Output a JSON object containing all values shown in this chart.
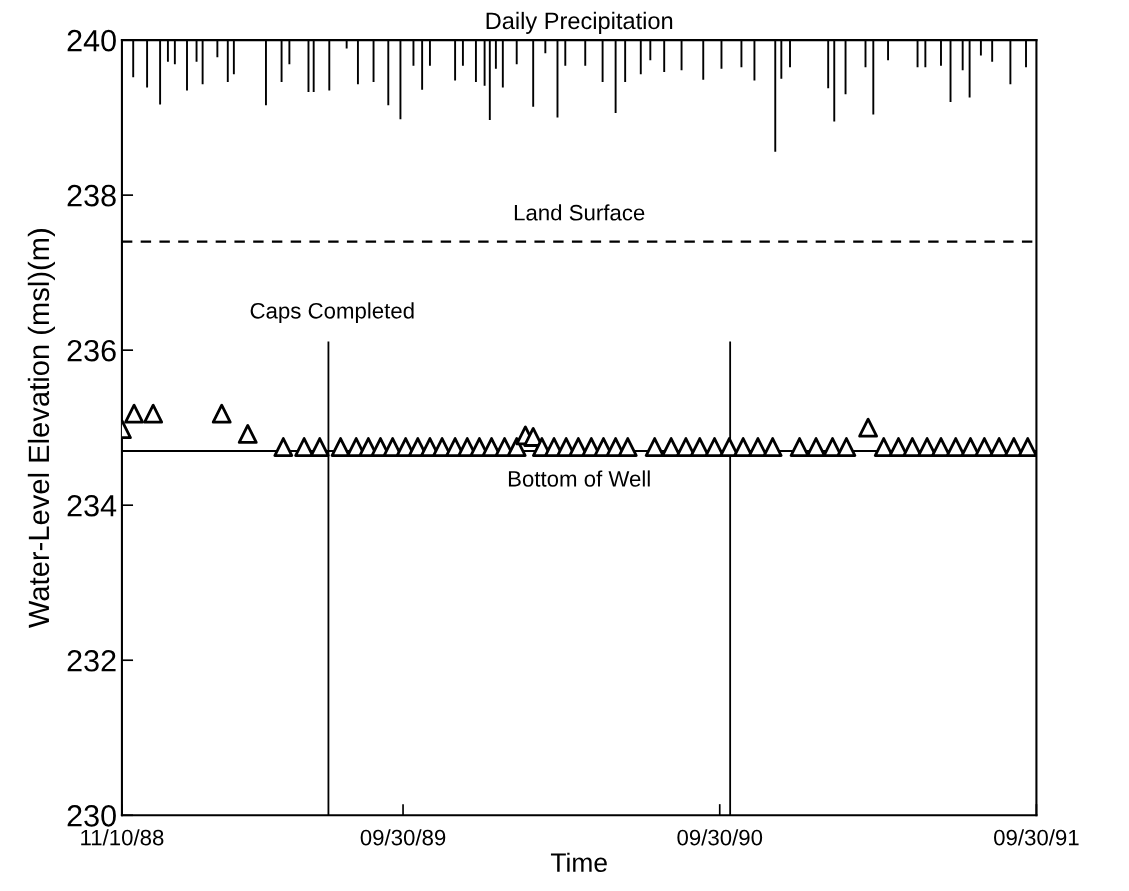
{
  "chart_data": {
    "type": "scatter",
    "title": "Daily Precipitation",
    "xlabel": "Time",
    "ylabel": "Water-Level Elevation (msl)(m)",
    "xlim": [
      "1988-11-10",
      "1991-09-30"
    ],
    "xticks": [
      {
        "value": "1988-11-10",
        "label": "11/10/88"
      },
      {
        "value": "1989-09-30",
        "label": "09/30/89"
      },
      {
        "value": "1990-09-30",
        "label": "09/30/90"
      },
      {
        "value": "1991-09-30",
        "label": "09/30/91"
      }
    ],
    "ylim": [
      230,
      240
    ],
    "yticks": [
      230,
      232,
      234,
      236,
      238,
      240
    ],
    "marker": "triangle",
    "ref_lines": [
      {
        "axis": "y",
        "value": 237.4,
        "label": "Land Surface",
        "line_style": "dashed",
        "color": "#000000"
      },
      {
        "axis": "y",
        "value": 234.7,
        "label": "Bottom of Well",
        "line_style": "solid",
        "color": "#000000"
      }
    ],
    "annotations": [
      "Caps Completed"
    ],
    "series": [
      {
        "type": "bar",
        "color": "#000000",
        "x": [
          "1988-11-23",
          "1988-12-09",
          "1988-12-24",
          "1989-01-02",
          "1989-01-10",
          "1989-01-24",
          "1989-02-04",
          "1989-02-11",
          "1989-02-28",
          "1989-03-12",
          "1989-03-19",
          "1989-04-25",
          "1989-05-13",
          "1989-05-22",
          "1989-06-13",
          "1989-06-19",
          "1989-07-07",
          "1989-07-27",
          "1989-08-09",
          "1989-08-27",
          "1989-09-13",
          "1989-09-27",
          "1989-10-12",
          "1989-10-22",
          "1989-10-31",
          "1989-11-29",
          "1989-12-08",
          "1989-12-23",
          "1990-01-02",
          "1990-01-08",
          "1990-01-15",
          "1990-01-23",
          "1990-02-08",
          "1990-02-27",
          "1990-03-13",
          "1990-03-27",
          "1990-04-05",
          "1990-04-28",
          "1990-05-18",
          "1990-06-02",
          "1990-06-13",
          "1990-07-01",
          "1990-07-12",
          "1990-07-28",
          "1990-08-17",
          "1990-09-11",
          "1990-10-02",
          "1990-10-25",
          "1990-11-09",
          "1990-12-03",
          "1990-12-10",
          "1990-12-20",
          "1991-02-02",
          "1991-02-09",
          "1991-02-22",
          "1991-03-17",
          "1991-03-26",
          "1991-04-12",
          "1991-05-16",
          "1991-05-25",
          "1991-06-12",
          "1991-06-23",
          "1991-07-07",
          "1991-07-15",
          "1991-07-28",
          "1991-08-10",
          "1991-08-31",
          "1991-09-18"
        ],
        "base": [
          240,
          240,
          240,
          240,
          240,
          240,
          240,
          240,
          240,
          240,
          240,
          240,
          240,
          240,
          240,
          240,
          240,
          240,
          240,
          240,
          240,
          240,
          240,
          240,
          240,
          240,
          240,
          240,
          240,
          240,
          240,
          240,
          240,
          240,
          240,
          240,
          240,
          240,
          240,
          240,
          240,
          240,
          240,
          240,
          240,
          240,
          240,
          240,
          240,
          240,
          240,
          240,
          240,
          240,
          240,
          240,
          240,
          240,
          240,
          240,
          240,
          240,
          240,
          240,
          240,
          240,
          240,
          240
        ],
        "values": [
          -0.48,
          -0.61,
          -0.83,
          -0.28,
          -0.31,
          -0.65,
          -0.28,
          -0.57,
          -0.22,
          -0.54,
          -0.44,
          -0.84,
          -0.54,
          -0.31,
          -0.67,
          -0.67,
          -0.65,
          -0.11,
          -0.57,
          -0.54,
          -0.84,
          -1.02,
          -0.33,
          -0.64,
          -0.33,
          -0.52,
          -0.33,
          -0.54,
          -0.59,
          -1.03,
          -0.37,
          -0.61,
          -0.31,
          -0.86,
          -0.17,
          -1.0,
          -0.33,
          -0.33,
          -0.54,
          -0.94,
          -0.54,
          -0.44,
          -0.26,
          -0.41,
          -0.39,
          -0.51,
          -0.37,
          -0.35,
          -0.52,
          -1.44,
          -0.5,
          -0.35,
          -0.62,
          -1.05,
          -0.7,
          -0.35,
          -0.96,
          -0.26,
          -0.35,
          -0.35,
          -0.33,
          -0.8,
          -0.39,
          -0.74,
          -0.2,
          -0.28,
          -0.57,
          -0.35
        ]
      },
      {
        "type": "line",
        "color": "#000000",
        "marker": "none",
        "x": [
          "1989-07-06",
          "1989-07-06"
        ],
        "values": [
          230,
          236.1
        ]
      },
      {
        "type": "line",
        "color": "#000000",
        "marker": "none",
        "x": [
          "1990-10-12",
          "1990-10-12"
        ],
        "values": [
          230,
          236.1
        ]
      },
      {
        "color": "#000000",
        "x": [
          "1988-11-10",
          "1988-11-24",
          "1988-12-16",
          "1989-03-05",
          "1989-04-04",
          "1989-05-15",
          "1989-06-08",
          "1989-06-26",
          "1989-07-20",
          "1989-08-07",
          "1989-08-21",
          "1989-09-04",
          "1989-09-18",
          "1989-10-03",
          "1989-10-17",
          "1989-10-31",
          "1989-11-14",
          "1989-11-29",
          "1989-12-13",
          "1989-12-27",
          "1990-01-10",
          "1990-01-25",
          "1990-02-08",
          "1990-02-18",
          "1990-02-27",
          "1990-03-09",
          "1990-03-23",
          "1990-04-06",
          "1990-04-20",
          "1990-05-05",
          "1990-05-19",
          "1990-06-02",
          "1990-06-16",
          "1990-07-17",
          "1990-08-05",
          "1990-08-22",
          "1990-09-07",
          "1990-09-24",
          "1990-10-11",
          "1990-10-27",
          "1990-11-13",
          "1990-11-30",
          "1990-12-31",
          "1991-01-19",
          "1991-02-07",
          "1991-02-23",
          "1991-03-20",
          "1991-04-07",
          "1991-04-24",
          "1991-05-10",
          "1991-05-27",
          "1991-06-12",
          "1991-06-29",
          "1991-07-16",
          "1991-08-01",
          "1991-08-18",
          "1991-09-04",
          "1991-09-20"
        ],
        "values": [
          234.98,
          235.18,
          235.18,
          235.18,
          234.92,
          234.75,
          234.75,
          234.75,
          234.75,
          234.75,
          234.75,
          234.75,
          234.75,
          234.75,
          234.75,
          234.75,
          234.75,
          234.75,
          234.75,
          234.75,
          234.75,
          234.75,
          234.75,
          234.9,
          234.88,
          234.75,
          234.75,
          234.75,
          234.75,
          234.75,
          234.75,
          234.75,
          234.75,
          234.75,
          234.75,
          234.75,
          234.75,
          234.75,
          234.75,
          234.75,
          234.75,
          234.75,
          234.75,
          234.75,
          234.75,
          234.75,
          235.0,
          234.75,
          234.75,
          234.75,
          234.75,
          234.75,
          234.75,
          234.75,
          234.75,
          234.75,
          234.75,
          234.75
        ]
      }
    ]
  }
}
